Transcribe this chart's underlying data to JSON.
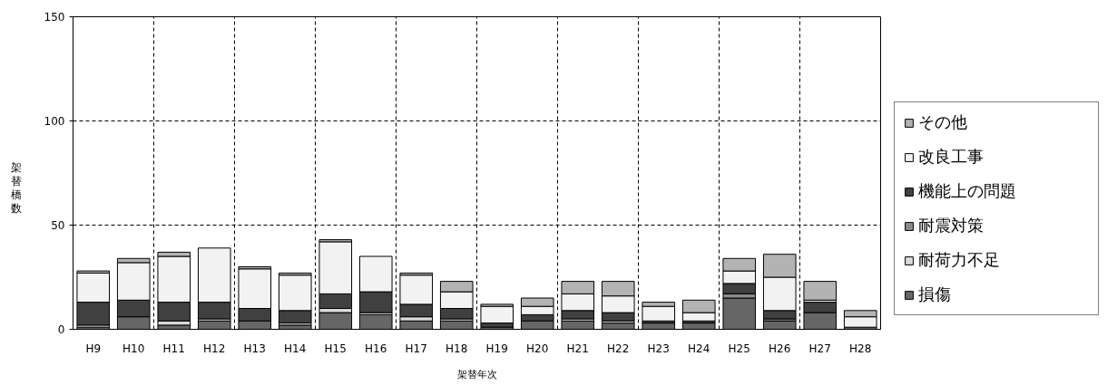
{
  "chart_data": {
    "type": "bar",
    "stacked": true,
    "xlabel": "架替年次",
    "ylabel": "架替橋数",
    "categories": [
      "H9",
      "H10",
      "H11",
      "H12",
      "H13",
      "H14",
      "H15",
      "H16",
      "H17",
      "H18",
      "H19",
      "H20",
      "H21",
      "H22",
      "H23",
      "H24",
      "H25",
      "H26",
      "H27",
      "H28"
    ],
    "series": [
      {
        "name": "損傷",
        "color": "#666666",
        "values": [
          1,
          6,
          2,
          4,
          4,
          2,
          8,
          7,
          4,
          4,
          1,
          4,
          4,
          3,
          3,
          3,
          15,
          4,
          8,
          1
        ]
      },
      {
        "name": "耐荷力不足",
        "color": "#d9d9d9",
        "values": [
          1,
          0,
          2,
          1,
          0,
          1,
          2,
          1,
          2,
          1,
          0,
          0,
          1,
          1,
          0,
          0,
          0,
          0,
          0,
          0
        ]
      },
      {
        "name": "耐震対策",
        "color": "#8c8c8c",
        "values": [
          0,
          0,
          0,
          0,
          0,
          0,
          0,
          0,
          0,
          0,
          0,
          0,
          0,
          0,
          0,
          0,
          2,
          1,
          0,
          0
        ]
      },
      {
        "name": "機能上の問題",
        "color": "#404040",
        "values": [
          11,
          8,
          9,
          8,
          6,
          6,
          7,
          10,
          6,
          5,
          2,
          3,
          4,
          4,
          1,
          1,
          5,
          4,
          5,
          0
        ]
      },
      {
        "name": "改良工事",
        "color": "#f2f2f2",
        "values": [
          14,
          18,
          22,
          26,
          19,
          17,
          25,
          17,
          14,
          8,
          8,
          4,
          8,
          8,
          7,
          4,
          6,
          16,
          1,
          5
        ]
      },
      {
        "name": "その他",
        "color": "#b3b3b3",
        "values": [
          1,
          2,
          2,
          0,
          1,
          1,
          1,
          0,
          1,
          5,
          1,
          4,
          6,
          7,
          2,
          6,
          6,
          11,
          9,
          3
        ]
      }
    ],
    "ylim": [
      0,
      150
    ],
    "yticks": [
      0,
      50,
      100,
      150
    ],
    "grid": true,
    "legend": "right"
  }
}
